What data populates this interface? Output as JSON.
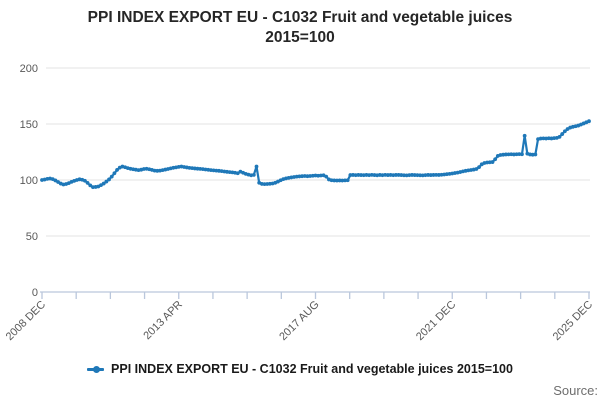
{
  "title": {
    "line1": "PPI INDEX EXPORT EU - C1032 Fruit and vegetable juices",
    "line2": "2015=100"
  },
  "source_label": "Source:",
  "legend": {
    "label": "PPI INDEX EXPORT EU - C1032 Fruit and vegetable juices 2015=100"
  },
  "style": {
    "line_color": "#1f78b8",
    "grid_color": "#e3e3e3",
    "axis_color": "#bac7dc",
    "tick_label_color": "#595959",
    "background": "#ffffff"
  },
  "chart_data": {
    "type": "line",
    "title": "PPI INDEX EXPORT EU - C1032 Fruit and vegetable juices 2015=100",
    "frequency": "monthly",
    "x_start": "2008 DEC",
    "x_end": "2025 DEC",
    "x_tick_labels": [
      "2008 DEC",
      "2013 APR",
      "2017 AUG",
      "2021 DEC",
      "2025 DEC"
    ],
    "minor_tick_intervals_between_labels": 4,
    "y_ticks": [
      0,
      50,
      100,
      150,
      200
    ],
    "ylim": [
      0,
      200
    ],
    "grid": "horizontal",
    "legend_position": "bottom",
    "series": [
      {
        "name": "PPI INDEX EXPORT EU - C1032 Fruit and vegetable juices 2015=100",
        "values": [
          100.0,
          100.4,
          101.0,
          101.3,
          100.8,
          99.6,
          98.2,
          96.8,
          96.0,
          96.4,
          97.2,
          98.3,
          99.2,
          100.0,
          100.6,
          100.2,
          99.3,
          97.4,
          95.2,
          93.6,
          93.8,
          94.2,
          95.4,
          96.8,
          98.6,
          100.5,
          103.0,
          106.0,
          109.0,
          111.0,
          112.0,
          111.4,
          110.6,
          110.0,
          109.6,
          109.2,
          108.8,
          109.2,
          109.8,
          110.0,
          109.6,
          109.0,
          108.4,
          108.2,
          108.4,
          108.8,
          109.3,
          109.8,
          110.4,
          110.9,
          111.3,
          111.7,
          112.0,
          111.6,
          111.2,
          110.8,
          110.6,
          110.3,
          110.1,
          109.9,
          109.7,
          109.4,
          109.1,
          108.8,
          108.6,
          108.4,
          108.2,
          107.9,
          107.6,
          107.3,
          107.0,
          106.8,
          106.5,
          106.0,
          107.5,
          106.5,
          105.5,
          104.8,
          104.2,
          104.6,
          112.0,
          97.5,
          96.5,
          96.3,
          96.4,
          96.6,
          96.9,
          97.5,
          98.6,
          99.8,
          100.8,
          101.4,
          101.9,
          102.3,
          102.7,
          103.0,
          103.2,
          103.4,
          103.6,
          103.4,
          103.6,
          103.8,
          104.0,
          103.8,
          104.0,
          104.2,
          103.0,
          100.5,
          99.8,
          99.6,
          99.5,
          99.6,
          99.5,
          99.7,
          99.8,
          104.4,
          104.5,
          104.3,
          104.5,
          104.4,
          104.3,
          104.5,
          104.3,
          104.6,
          104.4,
          104.2,
          104.5,
          104.3,
          104.6,
          104.4,
          104.5,
          104.3,
          104.5,
          104.5,
          104.4,
          104.2,
          104.1,
          104.3,
          104.5,
          104.4,
          104.3,
          104.2,
          104.1,
          104.3,
          104.5,
          104.4,
          104.5,
          104.6,
          104.5,
          104.7,
          104.9,
          105.2,
          105.5,
          105.8,
          106.2,
          106.6,
          107.1,
          107.7,
          108.2,
          108.6,
          108.9,
          109.3,
          109.8,
          111.5,
          114.0,
          115.2,
          115.6,
          115.8,
          116.0,
          118.5,
          121.5,
          122.3,
          122.6,
          122.8,
          122.9,
          123.0,
          122.8,
          123.0,
          123.1,
          123.0,
          139.5,
          123.5,
          122.8,
          122.6,
          122.8,
          136.5,
          137.0,
          137.2,
          137.0,
          137.3,
          137.1,
          137.4,
          137.6,
          138.5,
          141.0,
          143.5,
          145.5,
          146.8,
          147.5,
          148.0,
          148.6,
          149.5,
          150.5,
          151.5,
          152.5
        ]
      }
    ]
  }
}
